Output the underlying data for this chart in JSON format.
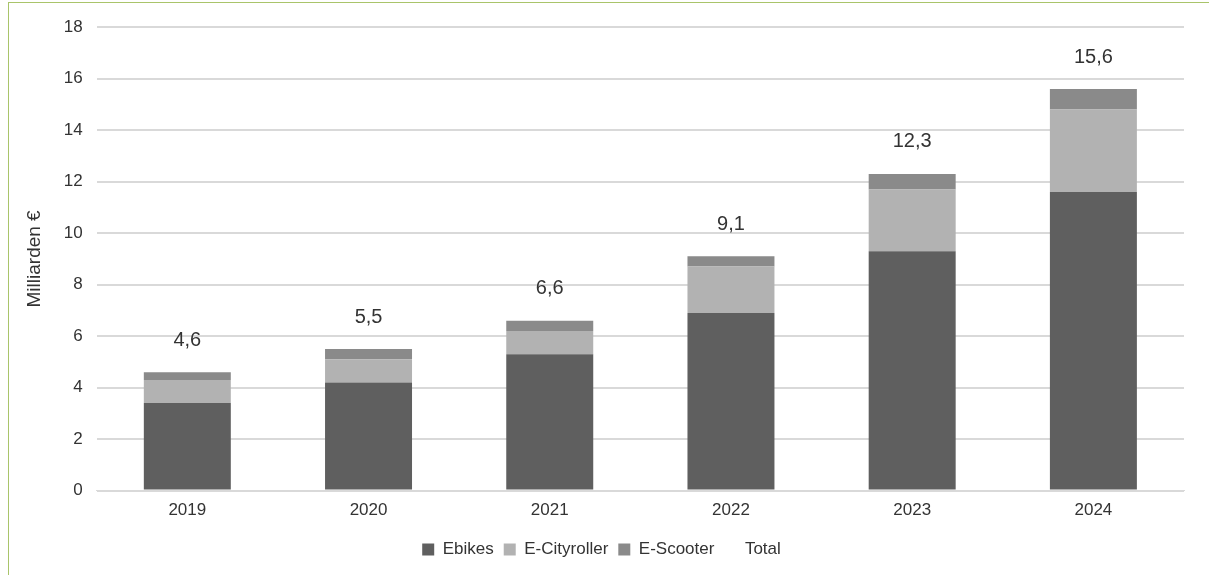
{
  "chart_data": {
    "type": "bar",
    "stacked": true,
    "ylabel": "Milliarden €",
    "categories": [
      "2019",
      "2020",
      "2021",
      "2022",
      "2023",
      "2024"
    ],
    "series": [
      {
        "name": "Ebikes",
        "color": "#5f5f5f",
        "values": [
          3.4,
          4.2,
          5.3,
          6.9,
          9.3,
          11.6
        ]
      },
      {
        "name": "E-Cityroller",
        "color": "#b2b2b2",
        "values": [
          0.9,
          0.9,
          0.9,
          1.8,
          2.4,
          3.2
        ]
      },
      {
        "name": "E-Scooter",
        "color": "#8a8a8a",
        "values": [
          0.3,
          0.4,
          0.4,
          0.4,
          0.6,
          0.8
        ]
      },
      {
        "name": "Total",
        "values": [
          null,
          null,
          null,
          null,
          null,
          null
        ]
      }
    ],
    "totals": [
      "4,6",
      "5,5",
      "6,6",
      "9,1",
      "12,3",
      "15,6"
    ],
    "ylim": [
      0,
      18
    ],
    "yticks": [
      0,
      2,
      4,
      6,
      8,
      10,
      12,
      14,
      16,
      18
    ],
    "grid": "y",
    "legend": "bottom"
  }
}
